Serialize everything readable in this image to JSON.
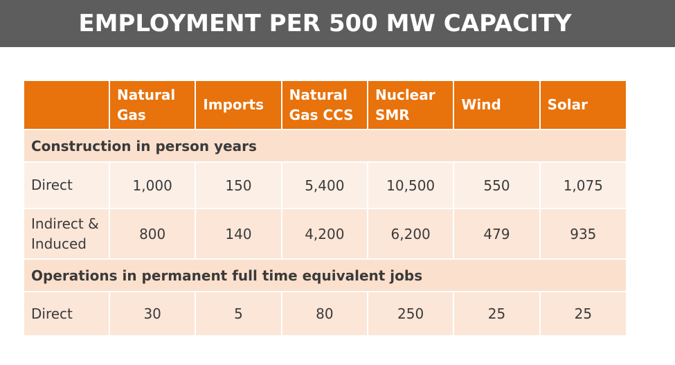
{
  "title": "EMPLOYMENT PER 500 MW CAPACITY",
  "headers": [
    "",
    "Natural Gas",
    "Imports",
    "Natural Gas CCS",
    "Nuclear SMR",
    "Wind",
    "Solar"
  ],
  "header_lines": [
    [
      "",
      ""
    ],
    [
      "Natural",
      "Gas"
    ],
    [
      "Imports",
      ""
    ],
    [
      "Natural",
      "Gas CCS"
    ],
    [
      "Nuclear",
      "SMR"
    ],
    [
      "Wind",
      ""
    ],
    [
      "Solar",
      ""
    ]
  ],
  "sections": [
    {
      "title": "Construction in person years",
      "rows": [
        {
          "label": "Direct",
          "values": [
            "1,000",
            "150",
            "5,400",
            "10,500",
            "550",
            "1,075"
          ]
        },
        {
          "label_lines": [
            "Indirect &",
            "Induced"
          ],
          "values": [
            "800",
            "140",
            "4,200",
            "6,200",
            "479",
            "935"
          ]
        }
      ]
    },
    {
      "title": "Operations in permanent full time equivalent jobs",
      "rows": [
        {
          "label": "Direct",
          "values": [
            "30",
            "5",
            "80",
            "250",
            "25",
            "25"
          ]
        }
      ]
    }
  ],
  "colors": {
    "title_bar": "#5d5d5d",
    "header": "#e8720c",
    "section_row": "#fbe0cd",
    "data_row_light": "#fcefe6",
    "data_row": "#fbe6d8"
  }
}
